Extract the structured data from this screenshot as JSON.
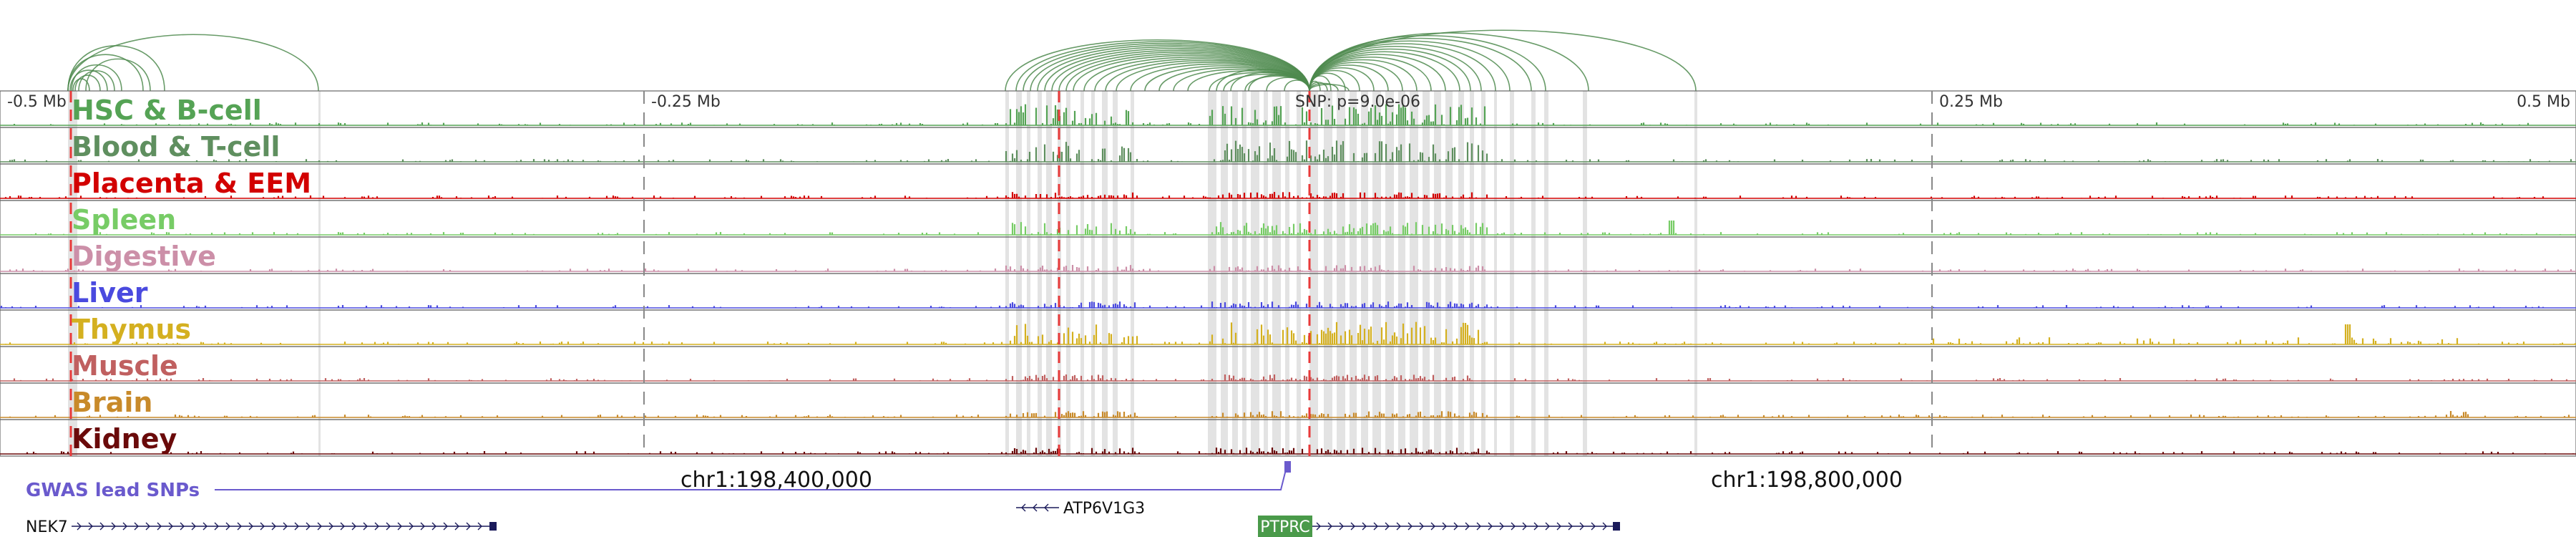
{
  "axis": {
    "ticks": [
      {
        "pos": -0.5,
        "label": "-0.5 Mb"
      },
      {
        "pos": -0.25,
        "label": "-0.25 Mb"
      },
      {
        "pos": 0.25,
        "label": "0.25 Mb"
      },
      {
        "pos": 0.5,
        "label": "0.5 Mb"
      }
    ],
    "snp_label": "SNP: p=9.0e-06",
    "coord_labels": [
      {
        "pos": -0.2,
        "label": "chr1:198,400,000"
      },
      {
        "pos": 0.2,
        "label": "chr1:198,800,000"
      }
    ]
  },
  "tracks": [
    {
      "name": "HSC & B-cell",
      "color": "#55a355"
    },
    {
      "name": "Blood & T-cell",
      "color": "#5f8f5f"
    },
    {
      "name": "Placenta & EEM",
      "color": "#d20000"
    },
    {
      "name": "Spleen",
      "color": "#77cc66"
    },
    {
      "name": "Digestive",
      "color": "#cc8fa8"
    },
    {
      "name": "Liver",
      "color": "#4a4adf"
    },
    {
      "name": "Thymus",
      "color": "#d4b020"
    },
    {
      "name": "Muscle",
      "color": "#c06060"
    },
    {
      "name": "Brain",
      "color": "#c88a2a"
    },
    {
      "name": "Kidney",
      "color": "#6a0a0a"
    }
  ],
  "gwas": {
    "label": "GWAS lead SNPs",
    "color": "#6a5acd"
  },
  "genes": [
    {
      "name": "NEK7",
      "start": -0.5,
      "end": -0.325,
      "strand": "+",
      "highlight": false
    },
    {
      "name": "ATP6V1G3",
      "start": -0.115,
      "end": -0.1,
      "strand": "-",
      "highlight": false
    },
    {
      "name": "PTPRC",
      "start": -0.002,
      "end": 0.12,
      "strand": "+",
      "highlight": true
    }
  ],
  "arc_color": "#4e8a4e"
}
